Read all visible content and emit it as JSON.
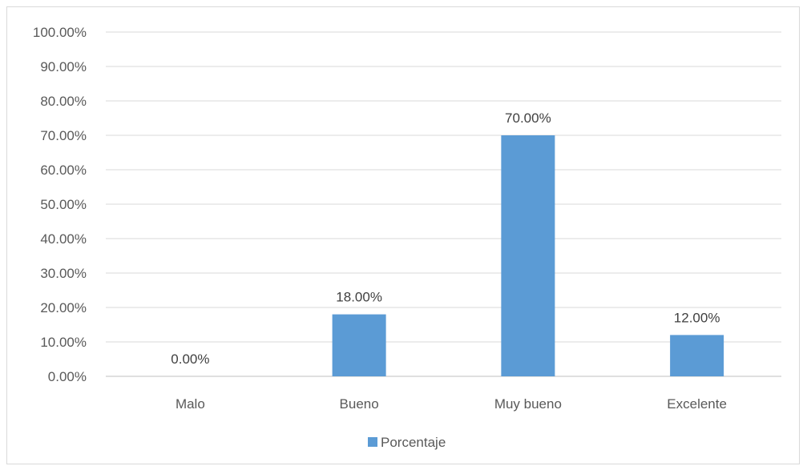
{
  "chart_data": {
    "type": "bar",
    "categories": [
      "Malo",
      "Bueno",
      "Muy bueno",
      "Excelente"
    ],
    "series": [
      {
        "name": "Porcentaje",
        "values": [
          0,
          18,
          70,
          12
        ],
        "data_labels": [
          "0.00%",
          "18.00%",
          "70.00%",
          "12.00%"
        ],
        "color": "#5b9bd5"
      }
    ],
    "y_ticks": [
      "0.00%",
      "10.00%",
      "20.00%",
      "30.00%",
      "40.00%",
      "50.00%",
      "60.00%",
      "70.00%",
      "80.00%",
      "90.00%",
      "100.00%"
    ],
    "ylim": [
      0,
      100
    ],
    "grid": true,
    "legend": "bottom-center",
    "colors": {
      "gridline": "#d9d9d9",
      "axis": "#bfbfbf",
      "bar": "#5b9bd5"
    }
  }
}
